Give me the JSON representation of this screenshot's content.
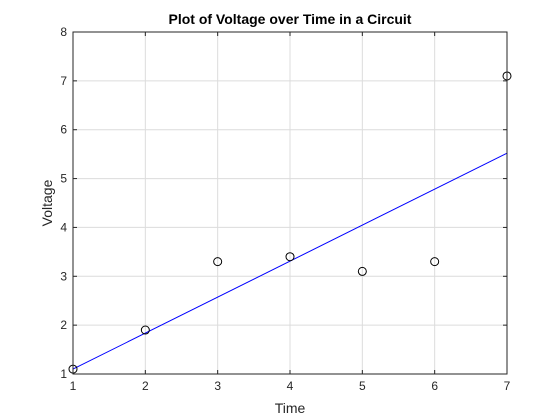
{
  "chart_data": {
    "type": "scatter",
    "title": "Plot of Voltage over Time in a Circuit",
    "xlabel": "Time",
    "ylabel": "Voltage",
    "xlim": [
      1,
      7
    ],
    "ylim": [
      1,
      8
    ],
    "xticks": [
      1,
      2,
      3,
      4,
      5,
      6,
      7
    ],
    "yticks": [
      1,
      2,
      3,
      4,
      5,
      6,
      7,
      8
    ],
    "grid": true,
    "points": {
      "x": [
        1,
        2,
        3,
        4,
        5,
        6,
        7
      ],
      "y": [
        1.1,
        1.9,
        3.3,
        3.4,
        3.1,
        3.3,
        7.1
      ],
      "marker": "open-circle",
      "color": "#000000"
    },
    "fit_line": {
      "x": [
        1,
        7
      ],
      "y": [
        1.1,
        5.52
      ],
      "color": "#0000ff"
    }
  }
}
